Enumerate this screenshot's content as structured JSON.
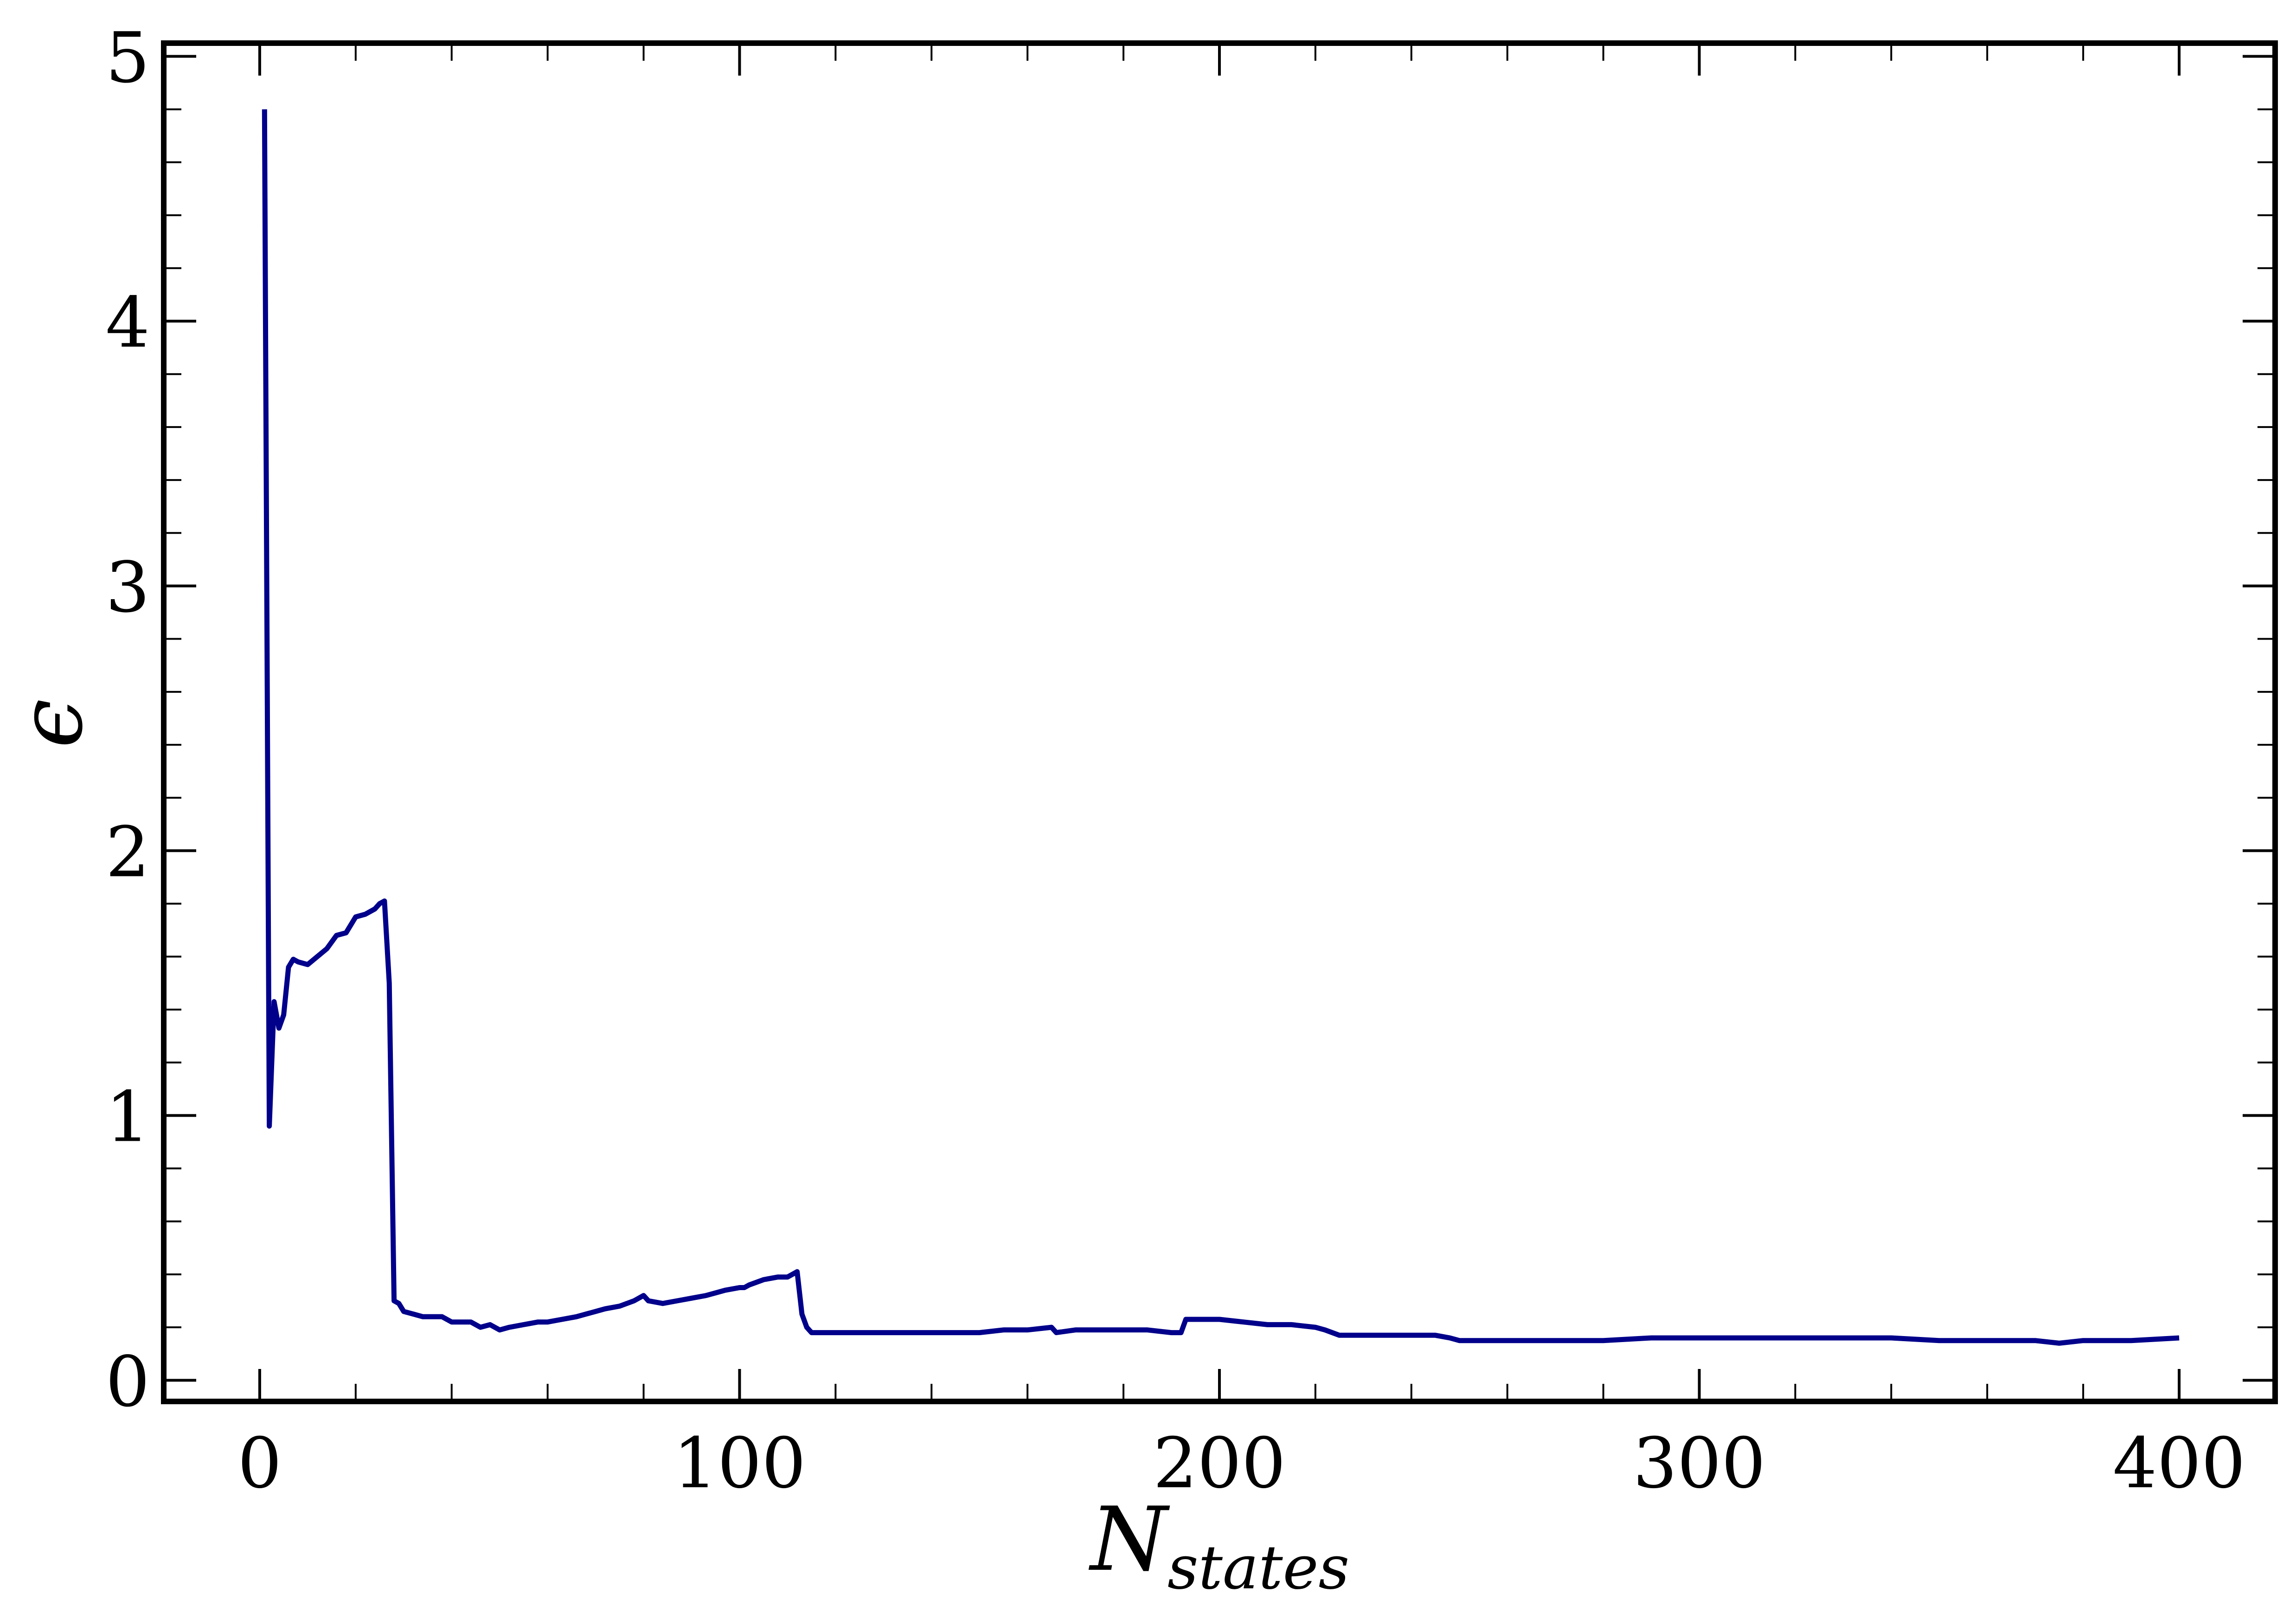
{
  "chart_data": {
    "type": "line",
    "title": "",
    "xlabel": {
      "main": "N",
      "sub": "states"
    },
    "ylabel": "ϵ",
    "xlim": [
      -20,
      420
    ],
    "ylim": [
      -0.08,
      5.05
    ],
    "xticks": [
      0,
      100,
      200,
      300,
      400
    ],
    "xtick_labels": [
      "0",
      "100",
      "200",
      "300",
      "400"
    ],
    "yticks": [
      0,
      1,
      2,
      3,
      4,
      5
    ],
    "ytick_labels": [
      "0",
      "1",
      "2",
      "3",
      "4",
      "5"
    ],
    "grid": false,
    "legend": "none",
    "series": [
      {
        "color": "#00008b",
        "x": [
          1,
          2,
          3,
          4,
          5,
          6,
          7,
          8,
          10,
          12,
          14,
          16,
          18,
          20,
          22,
          24,
          25,
          26,
          27,
          28,
          29,
          30,
          32,
          34,
          36,
          38,
          40,
          42,
          44,
          46,
          48,
          50,
          52,
          55,
          58,
          60,
          63,
          66,
          68,
          70,
          72,
          75,
          78,
          80,
          81,
          84,
          87,
          90,
          93,
          95,
          97,
          100,
          101,
          102,
          105,
          108,
          110,
          111,
          112,
          113,
          114,
          115,
          120,
          125,
          130,
          135,
          140,
          145,
          150,
          155,
          160,
          165,
          166,
          170,
          175,
          180,
          185,
          190,
          192,
          193,
          195,
          200,
          205,
          210,
          215,
          220,
          222,
          225,
          230,
          240,
          245,
          248,
          250,
          260,
          270,
          280,
          290,
          300,
          310,
          320,
          330,
          340,
          350,
          360,
          370,
          375,
          380,
          390,
          400
        ],
        "y": [
          4.8,
          0.96,
          1.43,
          1.33,
          1.38,
          1.56,
          1.59,
          1.58,
          1.57,
          1.6,
          1.63,
          1.68,
          1.69,
          1.75,
          1.76,
          1.78,
          1.8,
          1.81,
          1.5,
          0.3,
          0.29,
          0.26,
          0.25,
          0.24,
          0.24,
          0.24,
          0.22,
          0.22,
          0.22,
          0.2,
          0.21,
          0.19,
          0.2,
          0.21,
          0.22,
          0.22,
          0.23,
          0.24,
          0.25,
          0.26,
          0.27,
          0.28,
          0.3,
          0.32,
          0.3,
          0.29,
          0.3,
          0.31,
          0.32,
          0.33,
          0.34,
          0.35,
          0.35,
          0.36,
          0.38,
          0.39,
          0.39,
          0.4,
          0.41,
          0.25,
          0.2,
          0.18,
          0.18,
          0.18,
          0.18,
          0.18,
          0.18,
          0.18,
          0.18,
          0.19,
          0.19,
          0.2,
          0.18,
          0.19,
          0.19,
          0.19,
          0.19,
          0.18,
          0.18,
          0.23,
          0.23,
          0.23,
          0.22,
          0.21,
          0.21,
          0.2,
          0.19,
          0.17,
          0.17,
          0.17,
          0.17,
          0.16,
          0.15,
          0.15,
          0.15,
          0.15,
          0.16,
          0.16,
          0.16,
          0.16,
          0.16,
          0.16,
          0.15,
          0.15,
          0.15,
          0.14,
          0.15,
          0.15,
          0.16
        ]
      }
    ]
  }
}
